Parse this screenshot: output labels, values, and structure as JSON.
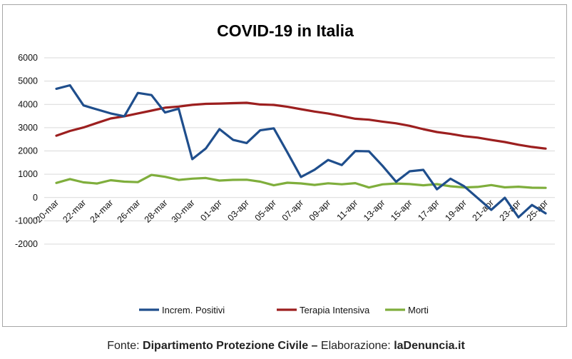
{
  "chart_data": {
    "type": "line",
    "title": "COVID-19 in Italia",
    "ylim": [
      -2000,
      6000
    ],
    "y_ticks": [
      "6000",
      "5000",
      "4000",
      "3000",
      "2000",
      "1000",
      "0",
      "-1000",
      "-2000"
    ],
    "y_tick_values": [
      6000,
      5000,
      4000,
      3000,
      2000,
      1000,
      0,
      -1000,
      -2000
    ],
    "x": [
      "20-mar",
      "21-mar",
      "22-mar",
      "23-mar",
      "24-mar",
      "25-mar",
      "26-mar",
      "27-mar",
      "28-mar",
      "29-mar",
      "30-mar",
      "31-mar",
      "01-apr",
      "02-apr",
      "03-apr",
      "04-apr",
      "05-apr",
      "06-apr",
      "07-apr",
      "08-apr",
      "09-apr",
      "10-apr",
      "11-apr",
      "12-apr",
      "13-apr",
      "14-apr",
      "15-apr",
      "16-apr",
      "17-apr",
      "18-apr",
      "19-apr",
      "20-apr",
      "21-apr",
      "22-apr",
      "23-apr",
      "24-apr",
      "25-apr"
    ],
    "x_tick_labels": [
      "20-mar",
      "22-mar",
      "24-mar",
      "26-mar",
      "28-mar",
      "30-mar",
      "01-apr",
      "03-apr",
      "05-apr",
      "07-apr",
      "09-apr",
      "11-apr",
      "13-apr",
      "15-apr",
      "17-apr",
      "19-apr",
      "21-apr",
      "23-apr",
      "25-apr"
    ],
    "grid": true,
    "legend_position": "bottom",
    "series": [
      {
        "name": "Increm. Positivi",
        "color": "#1f4e8c",
        "values": [
          4670,
          4821,
          3957,
          3780,
          3612,
          3491,
          4492,
          4401,
          3651,
          3815,
          1648,
          2107,
          2937,
          2477,
          2339,
          2886,
          2972,
          1941,
          880,
          1195,
          1615,
          1396,
          1996,
          1984,
          1363,
          675,
          1127,
          1189,
          355,
          809,
          486,
          -20,
          -528,
          -10,
          -851,
          -321,
          -680
        ]
      },
      {
        "name": "Terapia Intensiva",
        "color": "#9c1f1f",
        "values": [
          2655,
          2857,
          3009,
          3204,
          3396,
          3489,
          3612,
          3732,
          3856,
          3906,
          3981,
          4023,
          4035,
          4053,
          4068,
          3994,
          3977,
          3898,
          3792,
          3693,
          3605,
          3497,
          3381,
          3343,
          3260,
          3186,
          3079,
          2936,
          2812,
          2733,
          2635,
          2573,
          2471,
          2384,
          2267,
          2173,
          2102
        ]
      },
      {
        "name": "Morti",
        "color": "#7fae3c",
        "values": [
          627,
          793,
          651,
          601,
          743,
          683,
          662,
          969,
          889,
          756,
          812,
          837,
          727,
          760,
          766,
          681,
          525,
          636,
          604,
          542,
          610,
          570,
          619,
          431,
          566,
          602,
          578,
          525,
          575,
          482,
          433,
          454,
          534,
          437,
          464,
          420,
          415
        ]
      }
    ]
  },
  "source": {
    "prefix": "Fonte: ",
    "org": "Dipartimento Protezione Civile",
    "dash": " – ",
    "label": "Elaborazione: ",
    "site": "laDenuncia.it"
  }
}
